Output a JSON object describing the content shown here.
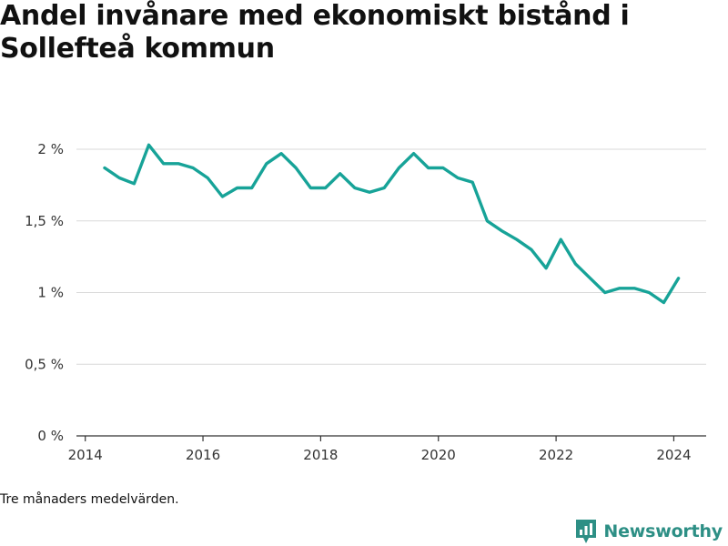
{
  "title": "Andel invånare med ekonomiskt bistånd i Sollefteå kommun",
  "note": "Tre månaders medelvärden.",
  "brand": {
    "name": "Newsworthy",
    "icon": "newsworthy-logo-icon",
    "color": "#2d8f85"
  },
  "chart_data": {
    "type": "line",
    "title": "Andel invånare med ekonomiskt bistånd i Sollefteå kommun",
    "xlabel": "",
    "ylabel": "",
    "xlim": [
      2013.85,
      2024.55
    ],
    "ylim": [
      0,
      2
    ],
    "x_ticks": [
      2014,
      2016,
      2018,
      2020,
      2022,
      2024
    ],
    "x_tick_labels": [
      "2014",
      "2016",
      "2018",
      "2020",
      "2022",
      "2024"
    ],
    "y_ticks": [
      0,
      0.5,
      1,
      1.5,
      2
    ],
    "y_tick_labels": [
      "0 %",
      "0,5 %",
      "1 %",
      "1,5 %",
      "2 %"
    ],
    "grid": "horizontal",
    "line_color": "#17a398",
    "series": [
      {
        "name": "",
        "x": [
          2014.33,
          2014.58,
          2014.83,
          2015.08,
          2015.33,
          2015.58,
          2015.83,
          2016.08,
          2016.33,
          2016.58,
          2016.83,
          2017.08,
          2017.33,
          2017.58,
          2017.83,
          2018.08,
          2018.33,
          2018.58,
          2018.83,
          2019.08,
          2019.33,
          2019.58,
          2019.83,
          2020.08,
          2020.33,
          2020.58,
          2020.83,
          2021.08,
          2021.33,
          2021.58,
          2021.83,
          2022.08,
          2022.33,
          2022.58,
          2022.83,
          2023.08,
          2023.33,
          2023.58,
          2023.83,
          2024.08
        ],
        "values": [
          1.87,
          1.8,
          1.76,
          2.03,
          1.9,
          1.9,
          1.87,
          1.8,
          1.67,
          1.73,
          1.73,
          1.9,
          1.97,
          1.87,
          1.73,
          1.73,
          1.83,
          1.73,
          1.7,
          1.73,
          1.87,
          1.97,
          1.87,
          1.87,
          1.8,
          1.77,
          1.5,
          1.43,
          1.37,
          1.3,
          1.17,
          1.37,
          1.2,
          1.1,
          1.0,
          1.03,
          1.03,
          1.0,
          0.93,
          1.1
        ]
      }
    ]
  }
}
